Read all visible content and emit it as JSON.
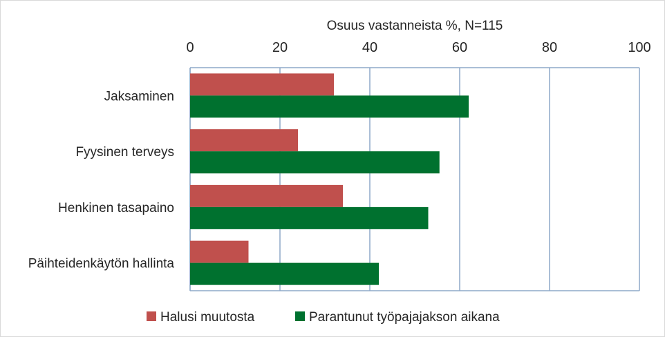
{
  "chart_data": {
    "type": "bar",
    "orientation": "horizontal",
    "title": "",
    "xlabel": "Osuus vastanneista %, N=115",
    "ylabel": "",
    "xlim": [
      0,
      100
    ],
    "x_ticks": [
      "0",
      "20",
      "40",
      "60",
      "80",
      "100"
    ],
    "x_axis_position": "top",
    "grid": true,
    "legend_position": "bottom",
    "categories": [
      "Jaksaminen",
      "Fyysinen terveys",
      "Henkinen tasapaino",
      "Päihteidenkäytön hallinta"
    ],
    "series": [
      {
        "name": "Halusi muutosta",
        "color": "#c0504d",
        "values": [
          32,
          24,
          34,
          13
        ]
      },
      {
        "name": "Parantunut työpajajakson aikana",
        "color": "#00712f",
        "values": [
          62,
          55.5,
          53,
          42
        ]
      }
    ]
  }
}
